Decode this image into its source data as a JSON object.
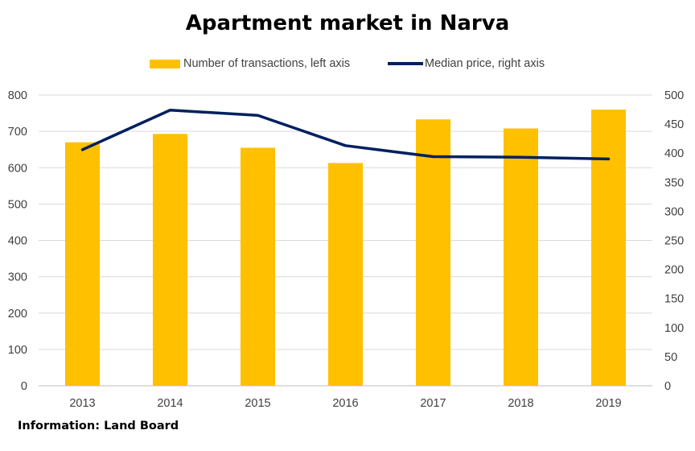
{
  "chart_data": {
    "type": "bar",
    "title": "Apartment market in Narva",
    "categories": [
      "2013",
      "2014",
      "2015",
      "2016",
      "2017",
      "2018",
      "2019"
    ],
    "series": [
      {
        "name": "Number of transactions, left axis",
        "type": "bar",
        "axis": "left",
        "color": "#FFC000",
        "values": [
          670,
          693,
          655,
          613,
          733,
          708,
          760
        ]
      },
      {
        "name": "Median price, right axis",
        "type": "line",
        "axis": "right",
        "color": "#002060",
        "values": [
          406,
          474,
          465,
          413,
          394,
          393,
          390
        ]
      }
    ],
    "y_left": {
      "ylim": [
        0,
        800
      ],
      "ticks": [
        "0",
        "100",
        "200",
        "300",
        "400",
        "500",
        "600",
        "700",
        "800"
      ]
    },
    "y_right": {
      "ylim": [
        0,
        500
      ],
      "ticks": [
        "0",
        "50",
        "100",
        "150",
        "200",
        "250",
        "300",
        "350",
        "400",
        "450",
        "500"
      ]
    },
    "grid": true,
    "legend_position": "top-center"
  },
  "source_note": "Information: Land Board"
}
